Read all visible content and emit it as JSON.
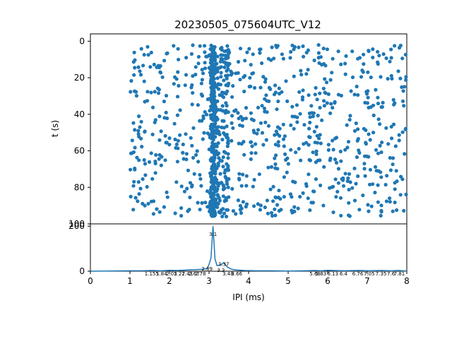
{
  "chart_data": [
    {
      "type": "scatter",
      "title": "20230505_075604UTC_V12",
      "xlabel": "",
      "ylabel": "t (s)",
      "xlim": [
        0,
        8
      ],
      "ylim": [
        100,
        -4
      ],
      "y_inverted": true,
      "yticks": [
        "0",
        "20",
        "40",
        "60",
        "80",
        "100"
      ],
      "marker_color": "#1f77b4",
      "x_range_of_points": [
        1.0,
        8.0
      ],
      "y_range_of_points": [
        2,
        96
      ],
      "dense_band_x": [
        3.0,
        3.5
      ],
      "dense_band_peak_x": 3.1,
      "approx_point_count": 1200,
      "grid": false
    },
    {
      "type": "line",
      "title": "",
      "xlabel": "IPI (ms)",
      "ylabel": "",
      "xlim": [
        0,
        8
      ],
      "ylim": [
        0,
        210
      ],
      "xticks": [
        "0",
        "1",
        "2",
        "3",
        "4",
        "5",
        "6",
        "7",
        "8"
      ],
      "yticks": [
        "0",
        "200"
      ],
      "line_color": "#1f77b4",
      "x": [
        0,
        1.0,
        1.3,
        1.55,
        1.8,
        2.0,
        2.2,
        2.5,
        2.8,
        2.95,
        3.0,
        3.05,
        3.1,
        3.15,
        3.2,
        3.3,
        3.37,
        3.45,
        3.55,
        3.65,
        3.9,
        4.2,
        4.6,
        5.0,
        5.4,
        5.68,
        5.83,
        6.0,
        6.13,
        6.4,
        6.76,
        7.05,
        7.35,
        7.6,
        7.81,
        8.0
      ],
      "values": [
        0,
        2,
        2,
        3,
        2,
        4,
        3,
        6,
        8,
        12,
        30,
        60,
        200,
        55,
        25,
        28,
        38,
        20,
        10,
        6,
        3,
        2,
        2,
        1,
        2,
        3,
        2,
        4,
        3,
        2,
        3,
        2,
        3,
        2,
        3,
        1
      ],
      "peak_labels": [
        {
          "x": 3.1,
          "y": 182,
          "text": "3.1"
        },
        {
          "x": 3.37,
          "y": 48,
          "text": "3.37"
        },
        {
          "x": 2.95,
          "y": 28,
          "text": "2.89"
        },
        {
          "x": 3.3,
          "y": 22,
          "text": "3.3"
        },
        {
          "x": 1.55,
          "y": 6,
          "text": "1.155"
        },
        {
          "x": 1.8,
          "y": 6,
          "text": "1.84"
        },
        {
          "x": 2.05,
          "y": 6,
          "text": "2.05"
        },
        {
          "x": 2.25,
          "y": 6,
          "text": "2.27"
        },
        {
          "x": 2.45,
          "y": 6,
          "text": "2.43"
        },
        {
          "x": 2.62,
          "y": 6,
          "text": "2.67"
        },
        {
          "x": 2.78,
          "y": 6,
          "text": "2.78"
        },
        {
          "x": 3.48,
          "y": 6,
          "text": "3.48"
        },
        {
          "x": 3.7,
          "y": 6,
          "text": "3.66"
        },
        {
          "x": 5.68,
          "y": 6,
          "text": "5.68"
        },
        {
          "x": 5.83,
          "y": 6,
          "text": "5.83"
        },
        {
          "x": 6.13,
          "y": 6,
          "text": "6.13"
        },
        {
          "x": 6.4,
          "y": 6,
          "text": "6.4"
        },
        {
          "x": 6.76,
          "y": 6,
          "text": "6.76"
        },
        {
          "x": 7.05,
          "y": 6,
          "text": "7.05"
        },
        {
          "x": 7.35,
          "y": 6,
          "text": "7.35"
        },
        {
          "x": 7.6,
          "y": 6,
          "text": "7.6"
        },
        {
          "x": 7.81,
          "y": 6,
          "text": "7.81"
        }
      ],
      "grid": false
    }
  ]
}
